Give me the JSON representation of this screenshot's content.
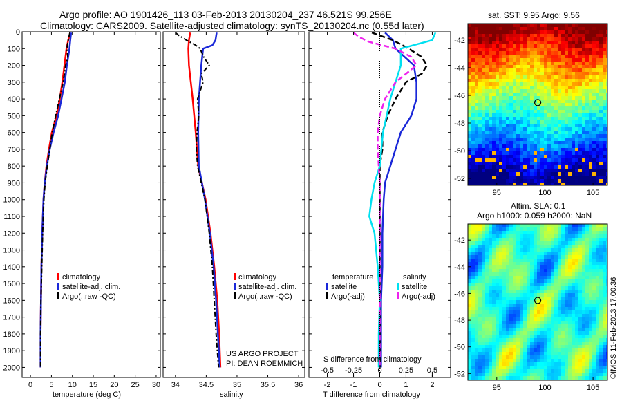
{
  "header": {
    "title_line1": "Argo profile: AO 1901426_113 03-Feb-2013 20130204_237 46.521S 99.256E",
    "title_line2": "Climatology: CARS2009. Satellite-adjusted climatology: synTS_20130204.nc (0.55d later)"
  },
  "colors": {
    "climatology": "#ff0000",
    "satellite": "#1a28d8",
    "argo": "#000000",
    "sat_salinity": "#00e0f0",
    "argo_salinity": "#ee22ee"
  },
  "chart_data": [
    {
      "type": "line",
      "name": "temperature-panel",
      "xlabel": "temperature (deg C)",
      "ylabel": "",
      "xlim": [
        -2,
        31
      ],
      "ylim": [
        2060,
        0
      ],
      "y_reversed": true,
      "xticks": [
        0,
        5,
        10,
        15,
        20,
        25,
        30
      ],
      "yticks": [
        0,
        100,
        200,
        300,
        400,
        500,
        600,
        700,
        800,
        900,
        1000,
        1100,
        1200,
        1300,
        1400,
        1500,
        1600,
        1700,
        1800,
        1900,
        2000
      ],
      "legend": [
        "climatology",
        "satellite-adj. clim.",
        "Argo(..raw -QC)"
      ],
      "legend_position": "lower-center",
      "series": [
        {
          "name": "climatology",
          "depth": [
            5,
            50,
            100,
            200,
            300,
            400,
            500,
            600,
            700,
            800,
            900,
            1000,
            1200,
            1400,
            1600,
            1800,
            2000
          ],
          "values": [
            9.5,
            9.0,
            8.6,
            8.1,
            7.6,
            7.0,
            6.2,
            5.1,
            4.4,
            3.8,
            3.4,
            3.1,
            2.8,
            2.6,
            2.5,
            2.4,
            2.4
          ]
        },
        {
          "name": "satellite-adj. clim.",
          "depth": [
            5,
            50,
            100,
            200,
            300,
            400,
            500,
            600,
            700,
            800,
            900,
            1000,
            1200,
            1400,
            1600,
            1800,
            2000
          ],
          "values": [
            9.7,
            9.5,
            9.3,
            8.7,
            8.2,
            7.4,
            6.6,
            5.5,
            4.6,
            3.9,
            3.4,
            3.1,
            2.8,
            2.6,
            2.5,
            2.4,
            2.4
          ]
        },
        {
          "name": "Argo(..raw -QC)",
          "depth": [
            5,
            50,
            100,
            150,
            200,
            300,
            400,
            500,
            600,
            700,
            800,
            900,
            1000,
            1200,
            1400,
            1600,
            1800,
            2000
          ],
          "values": [
            9.4,
            9.0,
            8.7,
            8.9,
            8.4,
            7.8,
            6.9,
            6.0,
            5.2,
            4.6,
            4.0,
            3.5,
            3.2,
            2.9,
            2.7,
            2.5,
            2.4,
            2.4
          ]
        }
      ]
    },
    {
      "type": "line",
      "name": "salinity-panel",
      "xlabel": "salinity",
      "xlim": [
        33.8,
        36.1
      ],
      "ylim": [
        2060,
        0
      ],
      "y_reversed": true,
      "xticks": [
        34,
        34.5,
        35,
        35.5,
        36
      ],
      "legend": [
        "climatology",
        "satellite-adj. clim.",
        "Argo(..raw -QC)"
      ],
      "legend_position": "lower-center",
      "annotations": [
        "US ARGO PROJECT",
        "PI: DEAN ROEMMICH"
      ],
      "series": [
        {
          "name": "climatology",
          "depth": [
            5,
            50,
            100,
            200,
            300,
            400,
            600,
            800,
            900,
            1000,
            1200,
            1400,
            1600,
            1800,
            2000
          ],
          "values": [
            34.24,
            34.22,
            34.21,
            34.22,
            34.25,
            34.28,
            34.33,
            34.37,
            34.43,
            34.49,
            34.57,
            34.63,
            34.68,
            34.71,
            34.73
          ]
        },
        {
          "name": "satellite-adj. clim.",
          "depth": [
            5,
            50,
            80,
            100,
            200,
            300,
            400,
            600,
            800,
            900,
            1000,
            1200,
            1400,
            1600,
            1800,
            2000
          ],
          "values": [
            34.67,
            34.65,
            34.6,
            34.45,
            34.42,
            34.4,
            34.38,
            34.37,
            34.38,
            34.43,
            34.48,
            34.56,
            34.62,
            34.66,
            34.69,
            34.72
          ]
        },
        {
          "name": "Argo(..raw -QC)",
          "depth": [
            5,
            20,
            50,
            80,
            100,
            150,
            200,
            250,
            300,
            400,
            500,
            600,
            700,
            800,
            900,
            1000,
            1200,
            1400,
            1600,
            1800,
            2000
          ],
          "values": [
            34.0,
            34.05,
            34.18,
            34.33,
            34.4,
            34.46,
            34.55,
            34.42,
            34.45,
            34.36,
            34.38,
            34.35,
            34.34,
            34.36,
            34.42,
            34.48,
            34.55,
            34.6,
            34.63,
            34.66,
            34.7
          ]
        }
      ]
    },
    {
      "type": "line",
      "name": "difference-panel",
      "xlabel": "T difference from climatology",
      "xlabel_top": "S difference from climatology",
      "xlim": [
        -2.7,
        2.7
      ],
      "ylim": [
        2060,
        0
      ],
      "y_reversed": true,
      "xticks": [
        -2,
        -1,
        0,
        1,
        2
      ],
      "s_ticks": [
        -0.5,
        -0.25,
        0,
        0.25,
        0.5
      ],
      "s_tick_labels": [
        "-0.5",
        "-0.25",
        "0",
        "0.25",
        "0.5"
      ],
      "legend": {
        "temperature_header": "temperature",
        "salinity_header": "salinity",
        "t_entries": [
          "satellite",
          "Argo(-adj)"
        ],
        "s_entries": [
          "satellite",
          "Argo(-adj)"
        ]
      },
      "legend_position": "lower-center",
      "series": [
        {
          "name": "temperature satellite",
          "depth": [
            5,
            50,
            100,
            200,
            300,
            400,
            500,
            600,
            700,
            800,
            900,
            1000,
            1200,
            1400,
            1600,
            1800,
            2000
          ],
          "values": [
            0.2,
            0.5,
            0.6,
            1.3,
            1.4,
            1.4,
            1.2,
            0.8,
            0.6,
            0.4,
            0.2,
            0.15,
            0.1,
            0.1,
            0.05,
            0.05,
            0.05
          ]
        },
        {
          "name": "temperature Argo(-adj)",
          "depth": [
            5,
            50,
            100,
            150,
            200,
            250,
            300,
            400,
            500,
            600,
            700,
            800,
            900,
            1000,
            1200,
            1400,
            1600,
            1800,
            2000
          ],
          "values": [
            -0.3,
            0.5,
            1.1,
            1.6,
            1.8,
            1.6,
            1.0,
            0.6,
            0.3,
            0.1,
            0.1,
            0.0,
            0.0,
            0.0,
            0.0,
            0.0,
            0.0,
            0.0,
            0.0
          ]
        },
        {
          "name": "salinity satellite",
          "depth": [
            5,
            50,
            100,
            200,
            300,
            400,
            600,
            800,
            900,
            1000,
            1100,
            1200,
            1400,
            1600,
            1800,
            2000
          ],
          "values": [
            0.53,
            0.5,
            0.2,
            0.2,
            0.15,
            0.1,
            0.03,
            0.0,
            -0.05,
            -0.08,
            -0.1,
            -0.05,
            -0.02,
            0.0,
            -0.01,
            -0.01
          ]
        },
        {
          "name": "salinity Argo(-adj)",
          "depth": [
            5,
            30,
            60,
            100,
            150,
            200,
            300,
            400,
            500,
            600,
            700,
            800,
            900,
            1000,
            1200,
            1400,
            1600,
            1800,
            2000
          ],
          "values": [
            -0.25,
            -0.2,
            -0.1,
            0.15,
            0.3,
            0.35,
            0.15,
            0.05,
            0.0,
            -0.02,
            -0.02,
            -0.01,
            0.0,
            0.0,
            0.0,
            0.0,
            0.0,
            0.0,
            0.0
          ]
        }
      ]
    },
    {
      "type": "heatmap",
      "name": "sst-map",
      "title": "sat. SST: 9.95  Argo: 9.56",
      "xlim": [
        92,
        106.5
      ],
      "ylim": [
        -52.5,
        -40.8
      ],
      "xticks": [
        95,
        100,
        105
      ],
      "yticks": [
        -42,
        -44,
        -46,
        -48,
        -50,
        -52
      ],
      "marker": {
        "lon": 99.256,
        "lat": -46.521
      }
    },
    {
      "type": "heatmap",
      "name": "sla-map",
      "title_line1": "Altim. SLA: 0.1",
      "title_line2": "Argo h1000: 0.059 h2000: NaN",
      "xlim": [
        92,
        106.5
      ],
      "ylim": [
        -52.5,
        -40.8
      ],
      "xticks": [
        95,
        100,
        105
      ],
      "yticks": [
        -42,
        -44,
        -46,
        -48,
        -50,
        -52
      ],
      "marker": {
        "lon": 99.256,
        "lat": -46.521
      }
    }
  ],
  "footer_stamp": "©IMOS 11-Feb-2013 17:00:36"
}
